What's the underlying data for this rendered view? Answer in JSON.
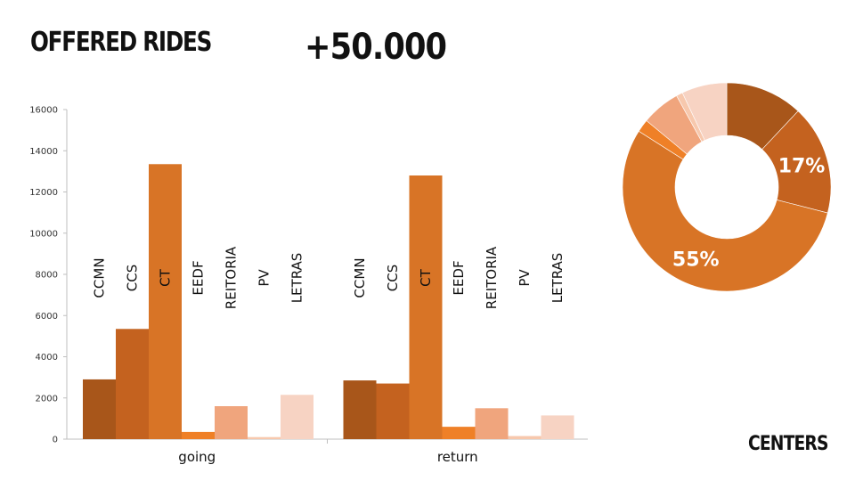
{
  "page": {
    "title": "OFFERED RIDES",
    "headline": "+50.000",
    "footer": "CENTERS"
  },
  "chart_data": [
    {
      "type": "bar",
      "title": "",
      "xlabel": "",
      "ylabel": "",
      "groups": [
        "going",
        "return"
      ],
      "categories": [
        "CCMN",
        "CCS",
        "CT",
        "EEDF",
        "REITORIA",
        "PV",
        "LETRAS"
      ],
      "series": [
        {
          "group": "going",
          "values": [
            2900,
            5350,
            13350,
            350,
            1600,
            100,
            2150
          ]
        },
        {
          "group": "return",
          "values": [
            2850,
            2700,
            12800,
            600,
            1500,
            150,
            1150
          ]
        }
      ],
      "colors": [
        "#a8561a",
        "#c4621f",
        "#d87426",
        "#ef8027",
        "#f0a57d",
        "#f7c8ad",
        "#f7d3c3"
      ],
      "ylim": [
        0,
        16000
      ],
      "yticks": [
        0,
        2000,
        4000,
        6000,
        8000,
        10000,
        12000,
        14000,
        16000
      ],
      "grid": false,
      "legend": "none"
    },
    {
      "type": "pie",
      "style": "donut",
      "slices": [
        {
          "value": 12,
          "color": "#a8561a"
        },
        {
          "value": 17,
          "color": "#c4621f",
          "label": "17%"
        },
        {
          "value": 55,
          "color": "#d87426",
          "label": "55%"
        },
        {
          "value": 2,
          "color": "#ef8027"
        },
        {
          "value": 6,
          "color": "#f0a57d"
        },
        {
          "value": 1,
          "color": "#f7c8ad"
        },
        {
          "value": 7,
          "color": "#f7d3c3"
        }
      ]
    }
  ]
}
